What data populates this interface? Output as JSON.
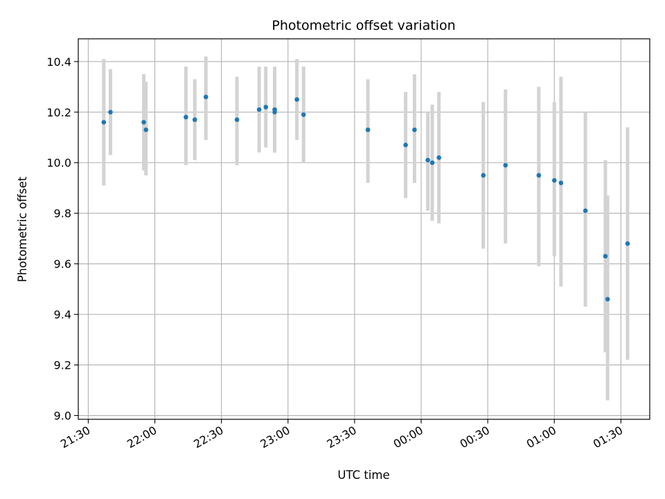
{
  "chart_data": {
    "type": "scatter",
    "title": "Photometric offset variation",
    "xlabel": "UTC time",
    "ylabel": "Photometric offset",
    "x_tick_labels": [
      "21:30",
      "22:00",
      "22:30",
      "23:00",
      "23:30",
      "00:00",
      "00:30",
      "01:00",
      "01:30"
    ],
    "x_tick_minutes": [
      0,
      30,
      60,
      90,
      120,
      150,
      180,
      210,
      240
    ],
    "xlim_minutes": [
      -4.5,
      253
    ],
    "y_ticks": [
      9.0,
      9.2,
      9.4,
      9.6,
      9.8,
      10.0,
      10.2,
      10.4
    ],
    "y_tick_labels": [
      "9.0",
      "9.2",
      "9.4",
      "9.6",
      "9.8",
      "10.0",
      "10.2",
      "10.4"
    ],
    "ylim": [
      8.985,
      10.49
    ],
    "grid": true,
    "point_color": "#1f77b4",
    "errorbar_color": "#d3d3d3",
    "series": [
      {
        "points": [
          {
            "t": "21:37",
            "y": 10.16,
            "lo": 9.91,
            "hi": 10.41
          },
          {
            "t": "21:40",
            "y": 10.2,
            "lo": 10.03,
            "hi": 10.37
          },
          {
            "t": "21:55",
            "y": 10.16,
            "lo": 9.97,
            "hi": 10.35
          },
          {
            "t": "21:56",
            "y": 10.13,
            "lo": 9.95,
            "hi": 10.32
          },
          {
            "t": "22:14",
            "y": 10.18,
            "lo": 9.99,
            "hi": 10.38
          },
          {
            "t": "22:18",
            "y": 10.17,
            "lo": 10.01,
            "hi": 10.33
          },
          {
            "t": "22:23",
            "y": 10.26,
            "lo": 10.09,
            "hi": 10.42
          },
          {
            "t": "22:37",
            "y": 10.17,
            "lo": 9.99,
            "hi": 10.34
          },
          {
            "t": "22:47",
            "y": 10.21,
            "lo": 10.04,
            "hi": 10.38
          },
          {
            "t": "22:50",
            "y": 10.22,
            "lo": 10.06,
            "hi": 10.38
          },
          {
            "t": "22:54",
            "y": 10.21,
            "lo": 10.04,
            "hi": 10.38
          },
          {
            "t": "22:54",
            "y": 10.2,
            "lo": 10.04,
            "hi": 10.37
          },
          {
            "t": "23:04",
            "y": 10.25,
            "lo": 10.09,
            "hi": 10.41
          },
          {
            "t": "23:07",
            "y": 10.19,
            "lo": 10.0,
            "hi": 10.38
          },
          {
            "t": "23:36",
            "y": 10.13,
            "lo": 9.92,
            "hi": 10.33
          },
          {
            "t": "23:53",
            "y": 10.07,
            "lo": 9.86,
            "hi": 10.28
          },
          {
            "t": "23:57",
            "y": 10.13,
            "lo": 9.92,
            "hi": 10.35
          },
          {
            "t": "00:03",
            "y": 10.01,
            "lo": 9.81,
            "hi": 10.2
          },
          {
            "t": "00:05",
            "y": 10.0,
            "lo": 9.77,
            "hi": 10.23
          },
          {
            "t": "00:08",
            "y": 10.02,
            "lo": 9.76,
            "hi": 10.28
          },
          {
            "t": "00:28",
            "y": 9.95,
            "lo": 9.66,
            "hi": 10.24
          },
          {
            "t": "00:38",
            "y": 9.99,
            "lo": 9.68,
            "hi": 10.29
          },
          {
            "t": "00:53",
            "y": 9.95,
            "lo": 9.59,
            "hi": 10.3
          },
          {
            "t": "01:00",
            "y": 9.93,
            "lo": 9.63,
            "hi": 10.24
          },
          {
            "t": "01:03",
            "y": 9.92,
            "lo": 9.51,
            "hi": 10.34
          },
          {
            "t": "01:14",
            "y": 9.81,
            "lo": 9.43,
            "hi": 10.2
          },
          {
            "t": "01:23",
            "y": 9.63,
            "lo": 9.25,
            "hi": 10.01
          },
          {
            "t": "01:24",
            "y": 9.46,
            "lo": 9.06,
            "hi": 9.87
          },
          {
            "t": "01:33",
            "y": 9.68,
            "lo": 9.22,
            "hi": 10.14
          }
        ]
      }
    ]
  }
}
